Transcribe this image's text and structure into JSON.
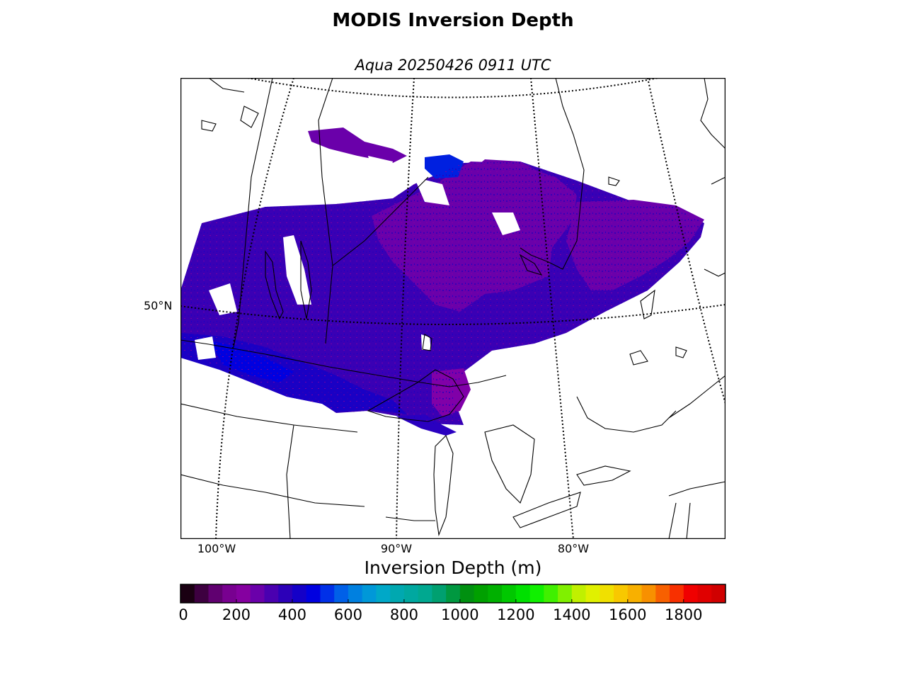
{
  "title": "MODIS Inversion Depth",
  "subtitle": "Aqua 20250426 0911 UTC",
  "longitude_labels": [
    "100°W",
    "90°W",
    "80°W"
  ],
  "latitude_labels": [
    "50°N"
  ],
  "colorbar": {
    "label": "Inversion Depth (m)",
    "tick_labels": [
      "0",
      "200",
      "400",
      "600",
      "800",
      "1000",
      "1200",
      "1400",
      "1600",
      "1800"
    ],
    "range_m": [
      0,
      1950
    ],
    "bin_width_m": 50,
    "colors": [
      "#1a0012",
      "#3d0040",
      "#600070",
      "#780090",
      "#8500a0",
      "#6a00aa",
      "#4a00b0",
      "#2c00b8",
      "#1400c8",
      "#0000e0",
      "#0030e8",
      "#0060e8",
      "#0080e0",
      "#0098d8",
      "#00a8c8",
      "#00a8b0",
      "#00a8a0",
      "#00a890",
      "#00a070",
      "#009840",
      "#009010",
      "#00a000",
      "#00b000",
      "#00c800",
      "#00e000",
      "#10f000",
      "#40f000",
      "#80f000",
      "#c0f000",
      "#e0f000",
      "#f0e000",
      "#f8c800",
      "#f8b000",
      "#f89000",
      "#f86000",
      "#f83000",
      "#f00000",
      "#e00000",
      "#d00000",
      "#c83030",
      "#c8a0a0"
    ]
  },
  "data_field_colors": {
    "primary": "#4a00b0",
    "purple": "#6a00aa",
    "blue": "#1400c8",
    "bright_blue": "#0000e0",
    "violet": "#8500a0"
  }
}
